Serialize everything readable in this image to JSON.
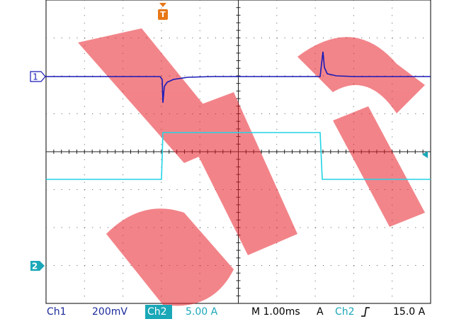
{
  "screen": {
    "markers": {
      "ch1": "1",
      "trigger": "T",
      "ch2": "2"
    }
  },
  "status_bar": {
    "ch1_label": "Ch1",
    "ch1_scale": "200mV",
    "ch2_label": "Ch2",
    "ch2_scale": "5.00 A",
    "timebase": "M 1.00ms",
    "trigger_mode": "A",
    "trigger_source": "Ch2",
    "trigger_level": "15.0 A"
  }
}
